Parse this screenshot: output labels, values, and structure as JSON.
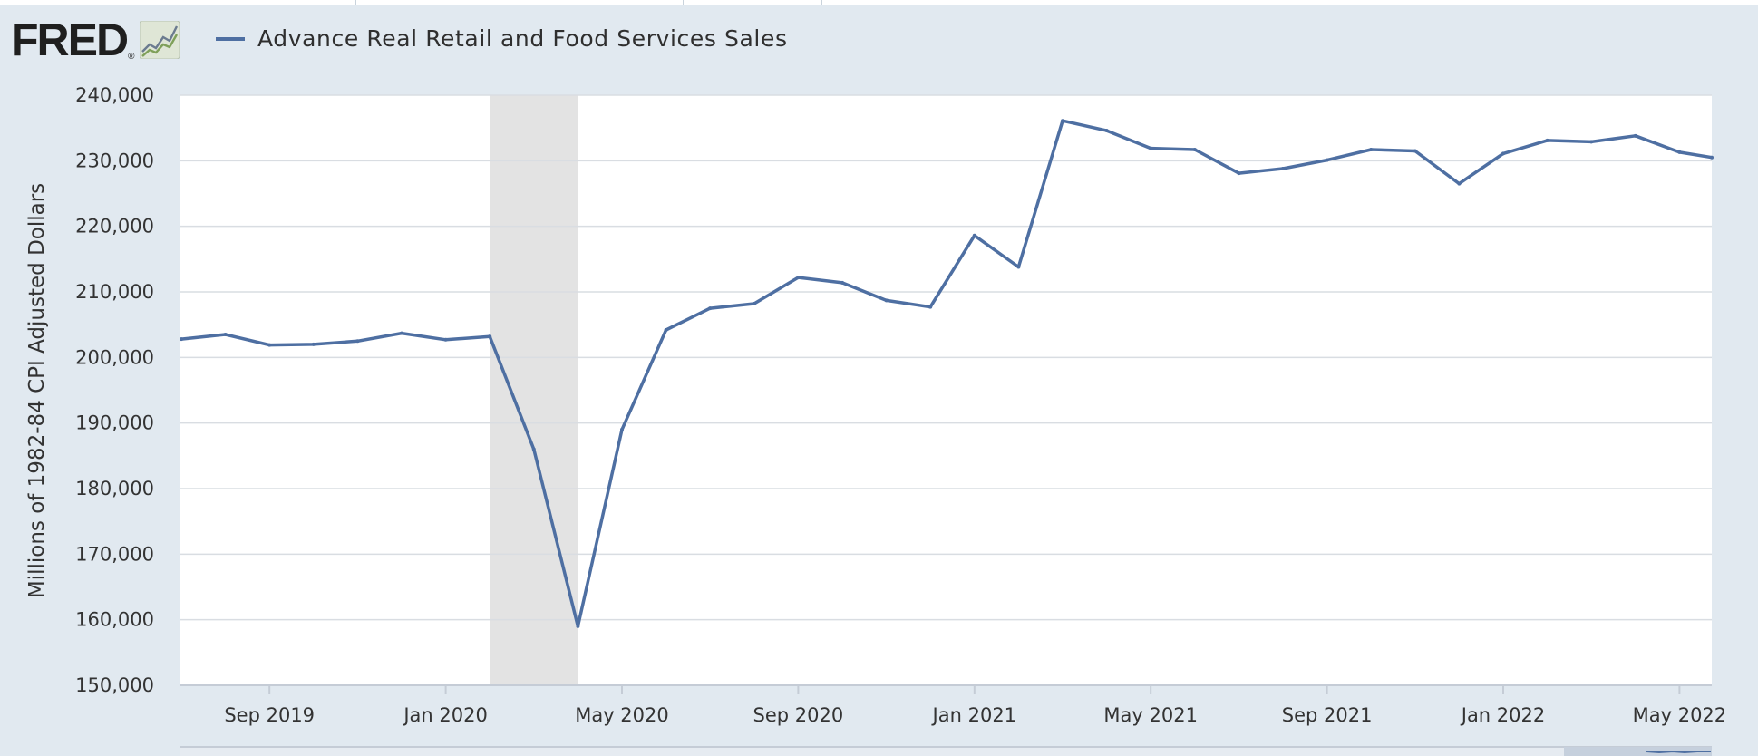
{
  "header": {
    "logo_text": "FRED",
    "logo_mark": "®",
    "logo_icon": "line-chart-icon",
    "legend_label": "Advance Real Retail and Food Services Sales"
  },
  "colors": {
    "series": "#4e6fa2",
    "recession": "#e3e3e3",
    "background": "#e1e9f0",
    "plot": "#ffffff",
    "grid": "#d9dde2"
  },
  "chart_data": {
    "type": "line",
    "title": "Advance Real Retail and Food Services Sales",
    "xlabel": "",
    "ylabel": "Millions of 1982-84 CPI Adjusted Dollars",
    "ylim": [
      150000,
      240000
    ],
    "yticks": [
      150000,
      160000,
      170000,
      180000,
      190000,
      200000,
      210000,
      220000,
      230000,
      240000
    ],
    "ytick_labels": [
      "150,000",
      "160,000",
      "170,000",
      "180,000",
      "190,000",
      "200,000",
      "210,000",
      "220,000",
      "230,000",
      "240,000"
    ],
    "xtick_labels": [
      "Sep 2019",
      "Jan 2020",
      "May 2020",
      "Sep 2020",
      "Jan 2021",
      "May 2021",
      "Sep 2021",
      "Jan 2022",
      "May 2022"
    ],
    "xtick_index": [
      2,
      6,
      10,
      14,
      18,
      22,
      26,
      30,
      34
    ],
    "grid": true,
    "recession": {
      "start": "Feb 2020",
      "end": "Apr 2020",
      "start_index": 7,
      "end_index": 9
    },
    "categories": [
      "Jul 2019",
      "Aug 2019",
      "Sep 2019",
      "Oct 2019",
      "Nov 2019",
      "Dec 2019",
      "Jan 2020",
      "Feb 2020",
      "Mar 2020",
      "Apr 2020",
      "May 2020",
      "Jun 2020",
      "Jul 2020",
      "Aug 2020",
      "Sep 2020",
      "Oct 2020",
      "Nov 2020",
      "Dec 2020",
      "Jan 2021",
      "Feb 2021",
      "Mar 2021",
      "Apr 2021",
      "May 2021",
      "Jun 2021",
      "Jul 2021",
      "Aug 2021",
      "Sep 2021",
      "Oct 2021",
      "Nov 2021",
      "Dec 2021",
      "Jan 2022",
      "Feb 2022",
      "Mar 2022",
      "Apr 2022",
      "May 2022",
      "Jun 2022"
    ],
    "series": [
      {
        "name": "Advance Real Retail and Food Services Sales",
        "values": [
          202800,
          203500,
          201900,
          202000,
          202500,
          203700,
          202700,
          203200,
          186000,
          159000,
          189000,
          204200,
          207500,
          208200,
          212200,
          211400,
          208700,
          207700,
          218600,
          213800,
          236100,
          234600,
          231900,
          231700,
          228100,
          228800,
          230100,
          231700,
          231500,
          226500,
          231100,
          233100,
          232900,
          233800,
          231300,
          230500
        ]
      }
    ]
  }
}
